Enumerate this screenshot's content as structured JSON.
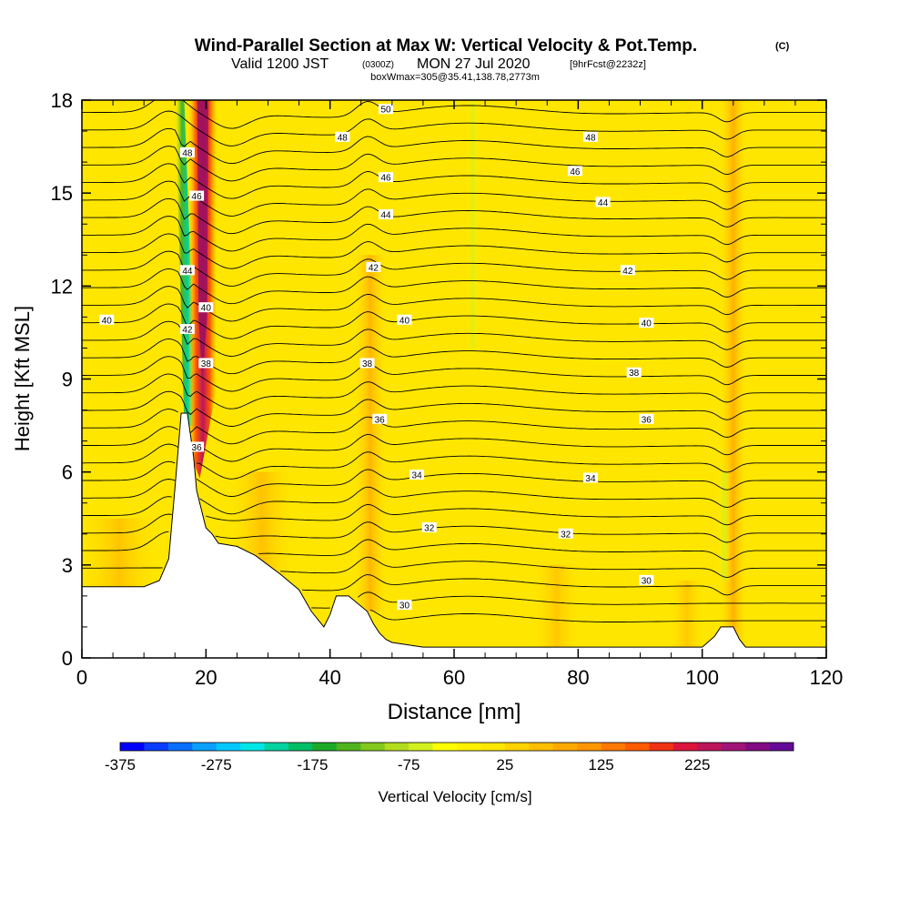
{
  "title": {
    "main": "Wind-Parallel Section at Max W: Vertical Velocity & Pot.Temp.",
    "mark": "(C)",
    "valid_prefix": "Valid 1200 JST",
    "valid_utc": "(0300Z)",
    "valid_date": "MON 27 Jul 2020",
    "forecast": "[9hrFcst@2232z]",
    "box": "boxWmax=305@35.41,138.78,2773m"
  },
  "chart_data": {
    "type": "heatmap",
    "xlabel": "Distance [nm]",
    "ylabel": "Height [Kft MSL]",
    "xlim": [
      0,
      120
    ],
    "ylim": [
      0,
      18
    ],
    "x_ticks": [
      "0",
      "20",
      "40",
      "60",
      "80",
      "100",
      "120"
    ],
    "y_ticks": [
      "0",
      "3",
      "6",
      "9",
      "12",
      "15",
      "18"
    ],
    "colorbar": {
      "label": "Vertical Velocity [cm/s]",
      "tick_labels": [
        "-375",
        "-275",
        "-175",
        "-75",
        "25",
        "125",
        "225"
      ],
      "levels": [
        -375,
        -350,
        -325,
        -300,
        -275,
        -250,
        -225,
        -200,
        -175,
        -150,
        -125,
        -100,
        -75,
        -50,
        -25,
        0,
        25,
        50,
        75,
        100,
        125,
        150,
        175,
        200,
        225,
        250,
        275,
        300
      ],
      "colors": [
        "#0000ff",
        "#0a3cff",
        "#0a6eff",
        "#0aa0ff",
        "#00c8ff",
        "#00e6e6",
        "#00d2a0",
        "#00be64",
        "#1eaa28",
        "#50b41e",
        "#82c81e",
        "#b4dc1e",
        "#d2f01e",
        "#ffff00",
        "#fff000",
        "#ffe600",
        "#ffd200",
        "#ffbe00",
        "#ffaa00",
        "#ff9600",
        "#ff7800",
        "#ff5a00",
        "#f03214",
        "#dc143c",
        "#be145a",
        "#a01478",
        "#820a82",
        "#640a96"
      ]
    },
    "terrain_kft": {
      "x": [
        0,
        5,
        10,
        12.5,
        14,
        15,
        16,
        17,
        18,
        18.5,
        19,
        20,
        21,
        22,
        25,
        28,
        30,
        32,
        35,
        37,
        39,
        40,
        41,
        43,
        46,
        47,
        48,
        49,
        50,
        55,
        60,
        65,
        70,
        75,
        80,
        85,
        90,
        95,
        100,
        102,
        103,
        104,
        105,
        106,
        107,
        108,
        120
      ],
      "y": [
        2.3,
        2.3,
        2.3,
        2.5,
        3.2,
        5.5,
        7.9,
        7.9,
        6.5,
        5.4,
        5.0,
        4.2,
        4.0,
        3.7,
        3.6,
        3.3,
        3.0,
        2.7,
        2.2,
        1.5,
        1.0,
        1.4,
        2.0,
        2.0,
        1.5,
        1.1,
        0.8,
        0.6,
        0.5,
        0.35,
        0.35,
        0.35,
        0.35,
        0.35,
        0.35,
        0.35,
        0.35,
        0.35,
        0.35,
        0.7,
        1.0,
        1.0,
        1.0,
        0.6,
        0.35,
        0.35,
        0.35
      ]
    },
    "theta_contours": {
      "levels": [
        30,
        32,
        34,
        36,
        38,
        40,
        42,
        44,
        46,
        48,
        50
      ],
      "labels": [
        {
          "text": "30",
          "x": 52,
          "y": 1.7
        },
        {
          "text": "30",
          "x": 91,
          "y": 2.5
        },
        {
          "text": "32",
          "x": 56,
          "y": 4.2
        },
        {
          "text": "32",
          "x": 78,
          "y": 4.0
        },
        {
          "text": "34",
          "x": 54,
          "y": 5.9
        },
        {
          "text": "34",
          "x": 82,
          "y": 5.8
        },
        {
          "text": "36",
          "x": 18.5,
          "y": 6.8
        },
        {
          "text": "36",
          "x": 48,
          "y": 7.7
        },
        {
          "text": "36",
          "x": 91,
          "y": 7.7
        },
        {
          "text": "38",
          "x": 20,
          "y": 9.5
        },
        {
          "text": "38",
          "x": 46,
          "y": 9.5
        },
        {
          "text": "38",
          "x": 89,
          "y": 9.2
        },
        {
          "text": "40",
          "x": 4,
          "y": 10.9
        },
        {
          "text": "42",
          "x": 17,
          "y": 10.6
        },
        {
          "text": "40",
          "x": 20,
          "y": 11.3
        },
        {
          "text": "40",
          "x": 52,
          "y": 10.9
        },
        {
          "text": "40",
          "x": 91,
          "y": 10.8
        },
        {
          "text": "42",
          "x": 47,
          "y": 12.6
        },
        {
          "text": "42",
          "x": 88,
          "y": 12.5
        },
        {
          "text": "44",
          "x": 17,
          "y": 12.5
        },
        {
          "text": "44",
          "x": 49,
          "y": 14.3
        },
        {
          "text": "44",
          "x": 84,
          "y": 14.7
        },
        {
          "text": "46",
          "x": 18.5,
          "y": 14.9
        },
        {
          "text": "46",
          "x": 49,
          "y": 15.5
        },
        {
          "text": "46",
          "x": 79.5,
          "y": 15.7
        },
        {
          "text": "48",
          "x": 17,
          "y": 16.3
        },
        {
          "text": "48",
          "x": 42,
          "y": 16.8
        },
        {
          "text": "48",
          "x": 82,
          "y": 16.8
        },
        {
          "text": "50",
          "x": 49,
          "y": 17.7
        }
      ]
    },
    "features": {
      "updraft_peak_cm_s": 305,
      "updraft_x_nm": [
        19,
        20.5
      ],
      "downdraft_x_nm": [
        16.5,
        18
      ],
      "secondary_updraft_x_nm": [
        104,
        106
      ]
    }
  }
}
